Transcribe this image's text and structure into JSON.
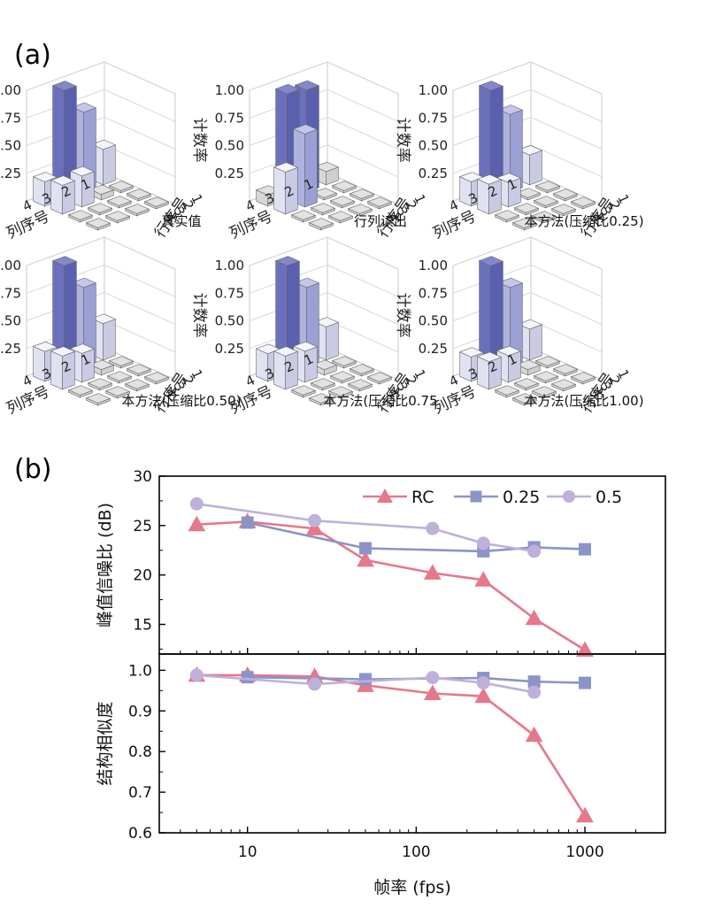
{
  "panel_a_label": "(a)",
  "panel_b_label": "(b)",
  "chart_data": [
    {
      "type": "bar3d",
      "panel": "a",
      "zlabel": "计数率",
      "xlabel": "列序号",
      "ylabel": "行序号",
      "z_ticks": [
        "0.25",
        "0.50",
        "0.75",
        "1.00"
      ],
      "x_ticks": [
        "4",
        "3",
        "2",
        "1"
      ],
      "y_ticks": [
        "1",
        "2",
        "3",
        "4"
      ],
      "subplots": [
        {
          "caption": "真实值",
          "grid": [
            [
              0.32,
              0.72,
              0.98,
              0.22
            ],
            [
              0.0,
              0.05,
              0.28,
              0.26
            ],
            [
              0,
              0,
              0,
              0
            ],
            [
              0,
              0,
              0,
              0
            ]
          ]
        },
        {
          "caption": "行列读出",
          "grid": [
            [
              0.12,
              0.92,
              0.95,
              0.1
            ],
            [
              0.0,
              0.0,
              0.66,
              0.38
            ],
            [
              0,
              0,
              0,
              0
            ],
            [
              0,
              0,
              0,
              0
            ]
          ]
        },
        {
          "caption": "本方法(压缩比0.25)",
          "grid": [
            [
              0.27,
              0.7,
              0.98,
              0.22
            ],
            [
              0.0,
              0.0,
              0.22,
              0.27
            ],
            [
              0,
              0,
              0,
              0
            ],
            [
              0,
              0,
              0,
              0
            ]
          ]
        },
        {
          "caption": "本方法(压缩比0.50)",
          "grid": [
            [
              0.33,
              0.72,
              0.98,
              0.27
            ],
            [
              0.0,
              0.05,
              0.26,
              0.3
            ],
            [
              0,
              0,
              0,
              0
            ],
            [
              0,
              0,
              0,
              0
            ]
          ]
        },
        {
          "caption": "本方法(压缩比0.75",
          "grid": [
            [
              0.3,
              0.72,
              0.98,
              0.25
            ],
            [
              0.0,
              0.05,
              0.28,
              0.3
            ],
            [
              0,
              0,
              0,
              0
            ],
            [
              0,
              0,
              0,
              0
            ]
          ]
        },
        {
          "caption": "本方法(压缩比1.00)",
          "grid": [
            [
              0.28,
              0.72,
              0.98,
              0.22
            ],
            [
              0.0,
              0.05,
              0.24,
              0.25
            ],
            [
              0,
              0,
              0,
              0
            ],
            [
              0,
              0,
              0,
              0
            ]
          ]
        }
      ]
    },
    {
      "type": "line",
      "panel": "b-top",
      "ylabel": "峰值信噪比 (dB)",
      "ylim": [
        12,
        30
      ],
      "y_ticks": [
        15,
        20,
        25,
        30
      ],
      "xscale": "log",
      "xlim": [
        3,
        3000
      ],
      "series": [
        {
          "name": "RC",
          "marker": "triangle",
          "color": "#e5788a",
          "x": [
            5,
            10,
            25,
            50,
            125,
            250,
            500,
            1000
          ],
          "y": [
            25.1,
            25.4,
            24.7,
            21.5,
            20.2,
            19.5,
            15.6,
            12.4
          ]
        },
        {
          "name": "0.25",
          "marker": "square",
          "color": "#8c94c7",
          "x": [
            10,
            50,
            250,
            500,
            1000
          ],
          "y": [
            25.3,
            22.7,
            22.4,
            22.8,
            22.6
          ]
        },
        {
          "name": "0.5",
          "marker": "circle",
          "color": "#bfb0da",
          "x": [
            5,
            25,
            125,
            250,
            500
          ],
          "y": [
            27.2,
            25.5,
            24.7,
            23.2,
            22.4
          ]
        }
      ],
      "legend": "top-right"
    },
    {
      "type": "line",
      "panel": "b-bottom",
      "ylabel": "结构相似度",
      "xlabel": "帧率 (fps)",
      "ylim": [
        0.6,
        1.04
      ],
      "y_ticks": [
        "0.6",
        "0.7",
        "0.8",
        "0.9",
        "1.0"
      ],
      "x_ticks": [
        "10",
        "100",
        "1000"
      ],
      "xscale": "log",
      "xlim": [
        3,
        3000
      ],
      "series": [
        {
          "name": "RC",
          "marker": "triangle",
          "color": "#e5788a",
          "x": [
            5,
            10,
            25,
            50,
            125,
            250,
            500,
            1000
          ],
          "y": [
            0.988,
            0.988,
            0.985,
            0.963,
            0.943,
            0.936,
            0.84,
            0.642
          ]
        },
        {
          "name": "0.25",
          "marker": "square",
          "color": "#8c94c7",
          "x": [
            10,
            50,
            250,
            500,
            1000
          ],
          "y": [
            0.983,
            0.978,
            0.981,
            0.972,
            0.969
          ]
        },
        {
          "name": "0.5",
          "marker": "circle",
          "color": "#bfb0da",
          "x": [
            5,
            25,
            125,
            250,
            500
          ],
          "y": [
            0.988,
            0.966,
            0.982,
            0.969,
            0.946
          ]
        }
      ]
    }
  ]
}
